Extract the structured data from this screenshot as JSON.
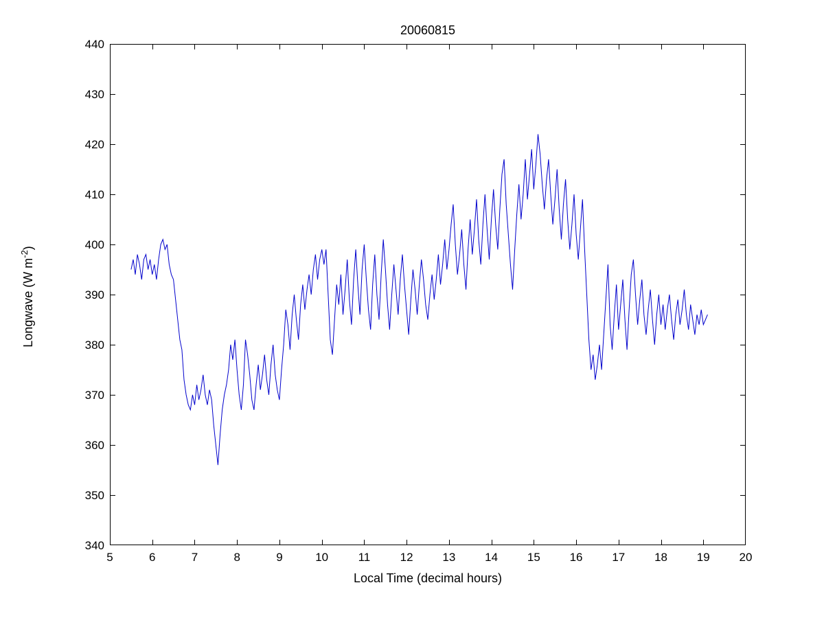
{
  "figure": {
    "title": "20060815",
    "xlabel": "Local Time (decimal hours)",
    "ylabel_parts": {
      "main": "Longwave (W m",
      "sup": "-2",
      "close": ")"
    }
  },
  "chart_data": {
    "type": "line",
    "title": "20060815",
    "xlabel": "Local Time (decimal hours)",
    "ylabel": "Longwave (W m^-2)",
    "xlim": [
      5,
      20
    ],
    "ylim": [
      340,
      440
    ],
    "xticks": [
      5,
      6,
      7,
      8,
      9,
      10,
      11,
      12,
      13,
      14,
      15,
      16,
      17,
      18,
      19,
      20
    ],
    "yticks": [
      340,
      350,
      360,
      370,
      380,
      390,
      400,
      410,
      420,
      430,
      440
    ],
    "grid": false,
    "legend": "none",
    "line_color": "#0000cc",
    "axis_color": "#000000",
    "series": [
      {
        "name": "longwave",
        "x_start": 5.5,
        "x_step": 0.05,
        "values": [
          395,
          397,
          394,
          398,
          396,
          393,
          397,
          398,
          395,
          397,
          394,
          396,
          393,
          397,
          400,
          401,
          399,
          400,
          396,
          394,
          393,
          389,
          385,
          381,
          379,
          373,
          370,
          368,
          367,
          370,
          368,
          372,
          369,
          371,
          374,
          370,
          368,
          371,
          369,
          364,
          360,
          356,
          362,
          367,
          370,
          372,
          375,
          380,
          377,
          381,
          375,
          370,
          367,
          372,
          381,
          378,
          374,
          369,
          367,
          372,
          376,
          371,
          374,
          378,
          373,
          370,
          376,
          380,
          374,
          371,
          369,
          375,
          380,
          387,
          384,
          379,
          386,
          390,
          385,
          381,
          388,
          392,
          387,
          391,
          394,
          390,
          395,
          398,
          393,
          397,
          399,
          396,
          399,
          390,
          381,
          378,
          385,
          392,
          388,
          394,
          386,
          391,
          397,
          389,
          384,
          393,
          399,
          392,
          386,
          395,
          400,
          393,
          387,
          383,
          392,
          398,
          390,
          385,
          394,
          401,
          395,
          388,
          383,
          390,
          396,
          391,
          386,
          393,
          398,
          392,
          387,
          382,
          389,
          395,
          391,
          386,
          392,
          397,
          393,
          388,
          385,
          390,
          394,
          389,
          393,
          398,
          392,
          396,
          401,
          395,
          399,
          404,
          408,
          400,
          394,
          398,
          403,
          396,
          391,
          399,
          405,
          398,
          403,
          409,
          401,
          396,
          404,
          410,
          403,
          397,
          405,
          411,
          404,
          399,
          407,
          414,
          417,
          408,
          402,
          396,
          391,
          399,
          406,
          412,
          405,
          410,
          417,
          409,
          414,
          419,
          411,
          416,
          422,
          418,
          412,
          407,
          413,
          417,
          410,
          404,
          409,
          415,
          407,
          401,
          408,
          413,
          405,
          399,
          404,
          410,
          402,
          397,
          403,
          409,
          399,
          390,
          381,
          375,
          378,
          373,
          376,
          380,
          375,
          382,
          389,
          396,
          384,
          379,
          386,
          392,
          383,
          388,
          393,
          385,
          379,
          387,
          394,
          397,
          390,
          384,
          389,
          393,
          386,
          382,
          387,
          391,
          385,
          380,
          386,
          390,
          384,
          388,
          383,
          387,
          390,
          385,
          381,
          386,
          389,
          384,
          387,
          391,
          386,
          383,
          388,
          385,
          382,
          386,
          384,
          387,
          384,
          385,
          386
        ]
      }
    ]
  }
}
